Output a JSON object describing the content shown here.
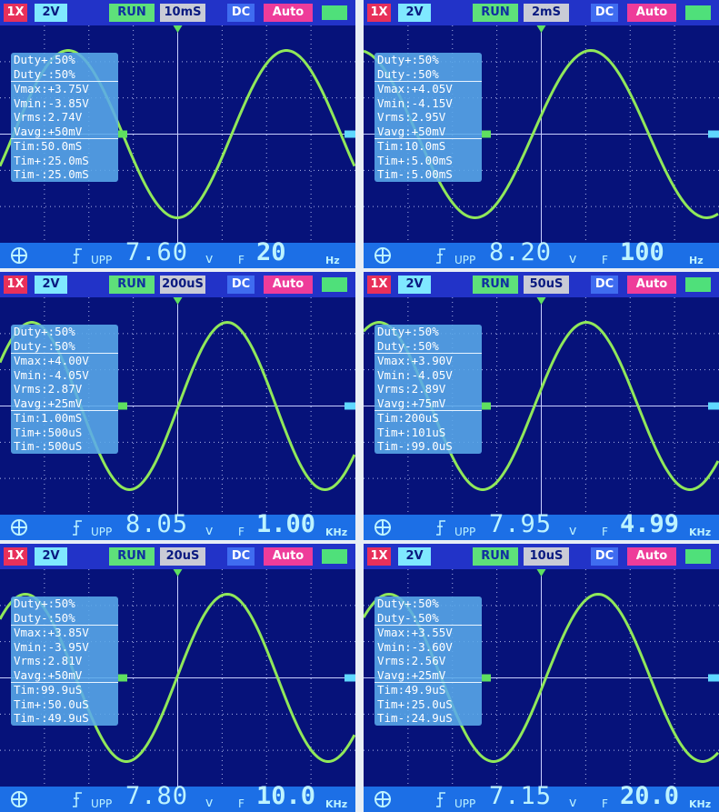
{
  "panels": [
    {
      "top": {
        "probe": "1X",
        "volts": "2V",
        "state": "RUN",
        "timebase": "10mS",
        "coupling": "DC",
        "mode": "Auto"
      },
      "measurements": [
        "Duty+:50%",
        "Duty-:50%",
        "Vmax:+3.75V",
        "Vmin:-3.85V",
        "Vrms:2.74V",
        "Vavg:+50mV",
        "Tim:50.0mS",
        "Tim+:25.0mS",
        "Tim-:25.0mS"
      ],
      "bottom": {
        "upp_label": "UPP",
        "vpp": "7.60",
        "vpp_unit": "v",
        "f_label": "F",
        "freq": "20",
        "freq_unit": "Hz"
      }
    },
    {
      "top": {
        "probe": "1X",
        "volts": "2V",
        "state": "RUN",
        "timebase": "2mS",
        "coupling": "DC",
        "mode": "Auto"
      },
      "measurements": [
        "Duty+:50%",
        "Duty-:50%",
        "Vmax:+4.05V",
        "Vmin:-4.15V",
        "Vrms:2.95V",
        "Vavg:+50mV",
        "Tim:10.0mS",
        "Tim+:5.00mS",
        "Tim-:5.00mS"
      ],
      "bottom": {
        "upp_label": "UPP",
        "vpp": "8.20",
        "vpp_unit": "v",
        "f_label": "F",
        "freq": "100",
        "freq_unit": "Hz"
      }
    },
    {
      "top": {
        "probe": "1X",
        "volts": "2V",
        "state": "RUN",
        "timebase": "200uS",
        "coupling": "DC",
        "mode": "Auto"
      },
      "measurements": [
        "Duty+:50%",
        "Duty-:50%",
        "Vmax:+4.00V",
        "Vmin:-4.05V",
        "Vrms:2.87V",
        "Vavg:+25mV",
        "Tim:1.00mS",
        "Tim+:500uS",
        "Tim-:500uS"
      ],
      "bottom": {
        "upp_label": "UPP",
        "vpp": "8.05",
        "vpp_unit": "v",
        "f_label": "F",
        "freq": "1.00",
        "freq_unit": "KHz"
      }
    },
    {
      "top": {
        "probe": "1X",
        "volts": "2V",
        "state": "RUN",
        "timebase": "50uS",
        "coupling": "DC",
        "mode": "Auto"
      },
      "measurements": [
        "Duty+:50%",
        "Duty-:50%",
        "Vmax:+3.90V",
        "Vmin:-4.05V",
        "Vrms:2.89V",
        "Vavg:+75mV",
        "Tim:200uS",
        "Tim+:101uS",
        "Tim-:99.0uS"
      ],
      "bottom": {
        "upp_label": "UPP",
        "vpp": "7.95",
        "vpp_unit": "v",
        "f_label": "F",
        "freq": "4.99",
        "freq_unit": "KHz"
      }
    },
    {
      "top": {
        "probe": "1X",
        "volts": "2V",
        "state": "RUN",
        "timebase": "20uS",
        "coupling": "DC",
        "mode": "Auto"
      },
      "measurements": [
        "Duty+:50%",
        "Duty-:50%",
        "Vmax:+3.85V",
        "Vmin:-3.95V",
        "Vrms:2.81V",
        "Vavg:+50mV",
        "Tim:99.9uS",
        "Tim+:50.0uS",
        "Tim-:49.9uS"
      ],
      "bottom": {
        "upp_label": "UPP",
        "vpp": "7.80",
        "vpp_unit": "v",
        "f_label": "F",
        "freq": "10.0",
        "freq_unit": "KHz"
      }
    },
    {
      "top": {
        "probe": "1X",
        "volts": "2V",
        "state": "RUN",
        "timebase": "10uS",
        "coupling": "DC",
        "mode": "Auto"
      },
      "measurements": [
        "Duty+:50%",
        "Duty-:50%",
        "Vmax:+3.55V",
        "Vmin:-3.60V",
        "Vrms:2.56V",
        "Vavg:+25mV",
        "Tim:49.9uS",
        "Tim+:25.0uS",
        "Tim-:24.9uS"
      ],
      "bottom": {
        "upp_label": "UPP",
        "vpp": "7.15",
        "vpp_unit": "v",
        "f_label": "F",
        "freq": "20.0",
        "freq_unit": "KHz"
      }
    }
  ]
}
